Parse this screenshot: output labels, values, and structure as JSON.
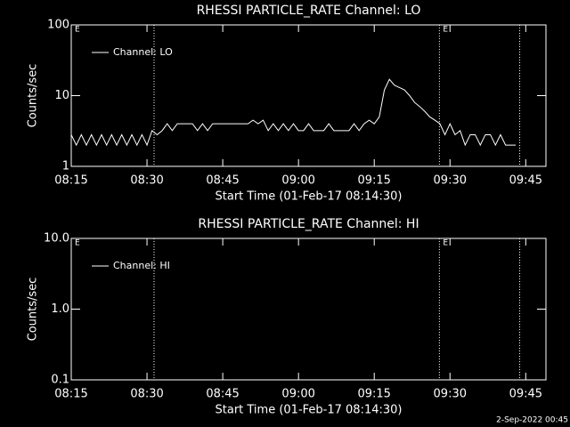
{
  "chart_data": [
    {
      "type": "line",
      "title": "RHESSI PARTICLE_RATE Channel: LO",
      "xlabel": "Start Time (01-Feb-17 08:14:30)",
      "ylabel": "Counts/sec",
      "yscale": "log",
      "ylim": [
        1,
        100
      ],
      "yticks": [
        1,
        10,
        100
      ],
      "xlim": [
        495,
        589
      ],
      "xticks": [
        {
          "value": 495,
          "label": "08:15"
        },
        {
          "value": 510,
          "label": "08:30"
        },
        {
          "value": 525,
          "label": "08:45"
        },
        {
          "value": 540,
          "label": "09:00"
        },
        {
          "value": 555,
          "label": "09:15"
        },
        {
          "value": 570,
          "label": "09:30"
        },
        {
          "value": 585,
          "label": "09:45"
        }
      ],
      "legend": "top-left",
      "color": "#ffffff",
      "vlines": [
        511.4,
        567.9,
        583.8
      ],
      "markers": [
        {
          "x": 495.7,
          "label": "E"
        },
        {
          "x": 568.6,
          "label": "E"
        }
      ],
      "series": [
        {
          "name": "Channel: LO",
          "color": "#ffffff",
          "x": [
            495,
            496,
            497,
            498,
            499,
            500,
            501,
            502,
            503,
            504,
            505,
            506,
            507,
            508,
            509,
            510,
            511,
            512,
            513,
            514,
            515,
            516,
            517,
            518,
            519,
            520,
            521,
            522,
            523,
            524,
            525,
            526,
            527,
            528,
            529,
            530,
            531,
            532,
            533,
            534,
            535,
            536,
            537,
            538,
            539,
            540,
            541,
            542,
            543,
            544,
            545,
            546,
            547,
            548,
            549,
            550,
            551,
            552,
            553,
            554,
            555,
            556,
            557,
            558,
            559,
            560,
            561,
            562,
            563,
            564,
            565,
            566,
            567,
            568,
            569,
            570,
            571,
            572,
            573,
            574,
            575,
            576,
            577,
            578,
            579,
            580,
            581,
            582,
            583
          ],
          "values": [
            2.8,
            2,
            2.8,
            2,
            2.8,
            2,
            2.8,
            2,
            2.8,
            2,
            2.8,
            2,
            2.8,
            2,
            2.8,
            2,
            3.2,
            2.8,
            3.2,
            4,
            3.2,
            4,
            4,
            4,
            4,
            3.2,
            4,
            3.2,
            4,
            4,
            4,
            4,
            4,
            4,
            4,
            4,
            4.5,
            4,
            4.5,
            3.2,
            4,
            3.2,
            4,
            3.2,
            4,
            3.2,
            3.2,
            4,
            3.2,
            3.2,
            3.2,
            4,
            3.2,
            3.2,
            3.2,
            3.2,
            4,
            3.2,
            4,
            4.5,
            4,
            5,
            12,
            17,
            14,
            13,
            12,
            10,
            8,
            7,
            6,
            5,
            4.5,
            4,
            2.8,
            4,
            2.8,
            3.2,
            2,
            2.8,
            2.8,
            2,
            2.8,
            2.8,
            2,
            2.8,
            2,
            2,
            2
          ]
        }
      ]
    },
    {
      "type": "line",
      "title": "RHESSI PARTICLE_RATE Channel: HI",
      "xlabel": "Start Time (01-Feb-17 08:14:30)",
      "ylabel": "Counts/sec",
      "yscale": "log",
      "ylim": [
        0.1,
        10
      ],
      "yticks": [
        0.1,
        {
          "value": 1,
          "label": "1.0"
        },
        {
          "value": 10,
          "label": "10.0"
        }
      ],
      "xlim": [
        495,
        589
      ],
      "xticks": [
        {
          "value": 495,
          "label": "08:15"
        },
        {
          "value": 510,
          "label": "08:30"
        },
        {
          "value": 525,
          "label": "08:45"
        },
        {
          "value": 540,
          "label": "09:00"
        },
        {
          "value": 555,
          "label": "09:15"
        },
        {
          "value": 570,
          "label": "09:30"
        },
        {
          "value": 585,
          "label": "09:45"
        }
      ],
      "legend": "top-left",
      "color": "#ffffff",
      "vlines": [
        511.4,
        567.9,
        583.8
      ],
      "markers": [
        {
          "x": 495.7,
          "label": "E"
        },
        {
          "x": 568.6,
          "label": "E"
        }
      ],
      "series": [
        {
          "name": "Channel: HI",
          "color": "#ffffff",
          "x": [],
          "values": []
        }
      ]
    }
  ],
  "footer": "2-Sep-2022 00:45"
}
